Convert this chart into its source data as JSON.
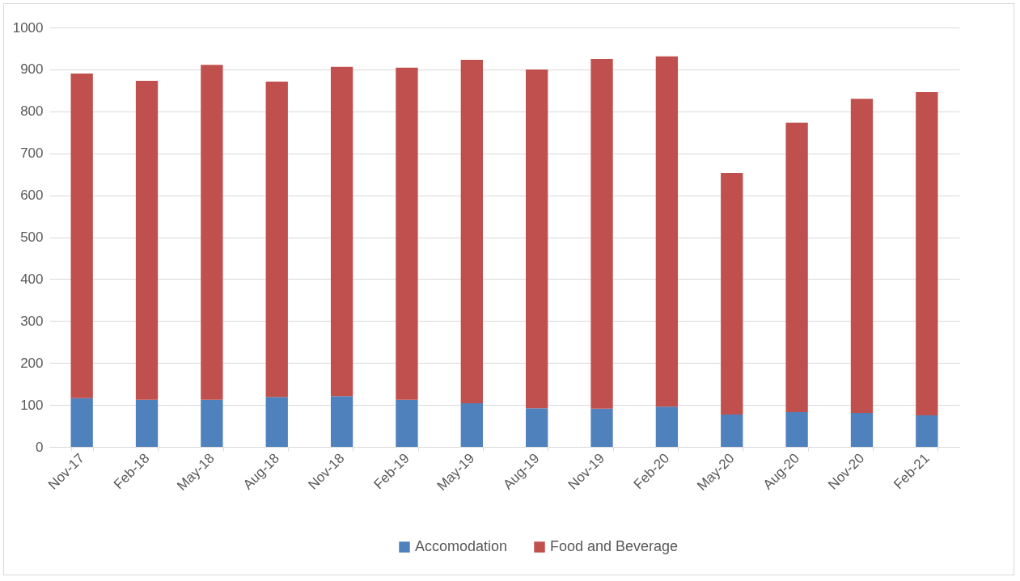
{
  "chart_data": {
    "type": "bar",
    "stacked": true,
    "categories": [
      "Nov-17",
      "Feb-18",
      "May-18",
      "Aug-18",
      "Nov-18",
      "Feb-19",
      "May-19",
      "Aug-19",
      "Nov-19",
      "Feb-20",
      "May-20",
      "Aug-20",
      "Nov-20",
      "Feb-21"
    ],
    "series": [
      {
        "name": "Accomodation",
        "color": "#4f81bd",
        "values": [
          116,
          112,
          112,
          119,
          121,
          112,
          104,
          92,
          91,
          96,
          77,
          83,
          81,
          75
        ]
      },
      {
        "name": "Food and Beverage",
        "color": "#c0504d",
        "values": [
          774,
          761,
          799,
          752,
          785,
          792,
          819,
          808,
          834,
          835,
          576,
          690,
          749,
          771
        ]
      }
    ],
    "ylim": [
      0,
      1000
    ],
    "yticks": [
      0,
      100,
      200,
      300,
      400,
      500,
      600,
      700,
      800,
      900,
      1000
    ],
    "grid": "y",
    "legend": "bottom"
  }
}
